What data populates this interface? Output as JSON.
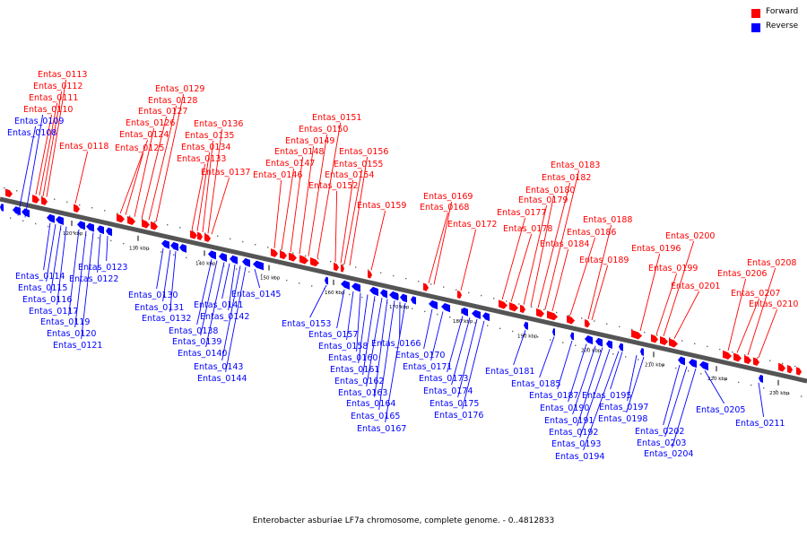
{
  "legend": {
    "forward": {
      "label": "Forward",
      "color": "#ff0000"
    },
    "reverse": {
      "label": "Reverse",
      "color": "#0000ff"
    }
  },
  "caption": "Enterobacter asburiae LF7a chromosome, complete genome. - 0..4812833",
  "colors": {
    "forward": "#ff0000",
    "reverse": "#0000ff",
    "backbone": "#555555"
  },
  "tick_labels": [
    "120 kbp",
    "130 kbp",
    "140 kbp",
    "150 kbp",
    "160 kbp",
    "170 kbp",
    "180 kbp",
    "190 kbp",
    "200 kbp",
    "210 kbp",
    "220 kbp",
    "230 kbp"
  ],
  "forward_genes": [
    "Entas_0110",
    "Entas_0111",
    "Entas_0112",
    "Entas_0113",
    "Entas_0118",
    "Entas_0124",
    "Entas_0125",
    "Entas_0126",
    "Entas_0127",
    "Entas_0128",
    "Entas_0129",
    "Entas_0133",
    "Entas_0134",
    "Entas_0135",
    "Entas_0136",
    "Entas_0137",
    "Entas_0146",
    "Entas_0147",
    "Entas_0148",
    "Entas_0149",
    "Entas_0150",
    "Entas_0151",
    "Entas_0152",
    "Entas_0154",
    "Entas_0155",
    "Entas_0156",
    "Entas_0159",
    "Entas_0168",
    "Entas_0169",
    "Entas_0172",
    "Entas_0177",
    "Entas_0178",
    "Entas_0179",
    "Entas_0180",
    "Entas_0182",
    "Entas_0183",
    "Entas_0184",
    "Entas_0186",
    "Entas_0188",
    "Entas_0189",
    "Entas_0196",
    "Entas_0199",
    "Entas_0200",
    "Entas_0201",
    "Entas_0206",
    "Entas_0207",
    "Entas_0208",
    "Entas_0210"
  ],
  "reverse_genes": [
    "Entas_0108",
    "Entas_0109",
    "Entas_0114",
    "Entas_0115",
    "Entas_0116",
    "Entas_0117",
    "Entas_0119",
    "Entas_0120",
    "Entas_0121",
    "Entas_0122",
    "Entas_0123",
    "Entas_0130",
    "Entas_0131",
    "Entas_0132",
    "Entas_0138",
    "Entas_0139",
    "Entas_0140",
    "Entas_0141",
    "Entas_0142",
    "Entas_0143",
    "Entas_0144",
    "Entas_0145",
    "Entas_0153",
    "Entas_0157",
    "Entas_0158",
    "Entas_0160",
    "Entas_0161",
    "Entas_0162",
    "Entas_0163",
    "Entas_0164",
    "Entas_0165",
    "Entas_0166",
    "Entas_0167",
    "Entas_0170",
    "Entas_0171",
    "Entas_0173",
    "Entas_0174",
    "Entas_0175",
    "Entas_0176",
    "Entas_0181",
    "Entas_0185",
    "Entas_0187",
    "Entas_0190",
    "Entas_0191",
    "Entas_0192",
    "Entas_0193",
    "Entas_0194",
    "Entas_0195",
    "Entas_0197",
    "Entas_0198",
    "Entas_0202",
    "Entas_0203",
    "Entas_0204",
    "Entas_0205",
    "Entas_0211"
  ]
}
